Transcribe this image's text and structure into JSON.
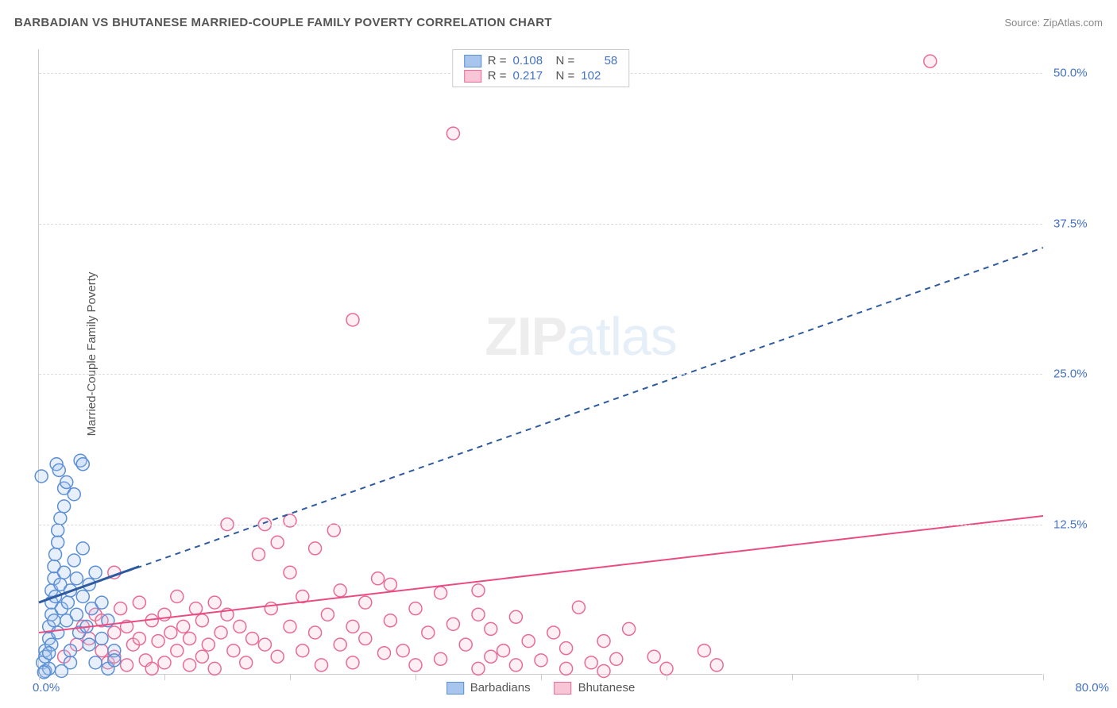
{
  "header": {
    "title": "BARBADIAN VS BHUTANESE MARRIED-COUPLE FAMILY POVERTY CORRELATION CHART",
    "source": "Source: ZipAtlas.com"
  },
  "watermark": {
    "zip": "ZIP",
    "atlas": "atlas"
  },
  "chart": {
    "type": "scatter",
    "y_axis_title": "Married-Couple Family Poverty",
    "background_color": "#ffffff",
    "grid_color": "#dddddd",
    "axis_color": "#cccccc",
    "label_color": "#4472c4",
    "text_color": "#555555",
    "xlim": [
      0,
      80
    ],
    "ylim": [
      0,
      52
    ],
    "x_ticks": [
      0,
      10,
      20,
      30,
      40,
      50,
      60,
      70,
      80
    ],
    "y_gridlines": [
      12.5,
      25.0,
      37.5,
      50.0
    ],
    "y_tick_labels": [
      "12.5%",
      "25.0%",
      "37.5%",
      "50.0%"
    ],
    "x_label_min": "0.0%",
    "x_label_max": "80.0%",
    "marker_radius": 8,
    "marker_stroke_width": 1.5,
    "marker_fill_opacity": 0.28,
    "series": {
      "barbadians": {
        "label": "Barbadians",
        "color_fill": "#a8c6ed",
        "color_stroke": "#5b8fd6",
        "trend_color": "#2d5aa0",
        "trend_dashed": true,
        "trend_line": {
          "x1": 0,
          "y1": 6.0,
          "x2": 80,
          "y2": 35.5
        },
        "trend_solid_segment": {
          "x1": 0,
          "y1": 6.0,
          "x2": 8,
          "y2": 9.0
        },
        "R": "0.108",
        "N": "58",
        "points": [
          [
            0.3,
            1.0
          ],
          [
            0.5,
            2.0
          ],
          [
            0.5,
            0.3
          ],
          [
            0.5,
            1.5
          ],
          [
            0.8,
            3.0
          ],
          [
            0.8,
            4.0
          ],
          [
            0.8,
            0.5
          ],
          [
            1.0,
            5.0
          ],
          [
            1.0,
            6.0
          ],
          [
            1.0,
            7.0
          ],
          [
            1.0,
            2.5
          ],
          [
            1.2,
            8.0
          ],
          [
            1.2,
            9.0
          ],
          [
            1.2,
            4.5
          ],
          [
            1.3,
            10.0
          ],
          [
            1.3,
            6.5
          ],
          [
            1.5,
            11.0
          ],
          [
            1.5,
            12.0
          ],
          [
            1.5,
            3.5
          ],
          [
            1.7,
            13.0
          ],
          [
            1.7,
            7.5
          ],
          [
            1.8,
            5.5
          ],
          [
            2.0,
            14.0
          ],
          [
            2.0,
            8.5
          ],
          [
            2.0,
            15.5
          ],
          [
            2.2,
            16.0
          ],
          [
            2.2,
            4.5
          ],
          [
            2.3,
            6.0
          ],
          [
            2.5,
            7.0
          ],
          [
            2.5,
            2.0
          ],
          [
            2.8,
            15.0
          ],
          [
            2.8,
            9.5
          ],
          [
            3.0,
            5.0
          ],
          [
            3.0,
            8.0
          ],
          [
            3.2,
            3.5
          ],
          [
            3.5,
            6.5
          ],
          [
            3.5,
            10.5
          ],
          [
            3.8,
            4.0
          ],
          [
            4.0,
            7.5
          ],
          [
            4.0,
            2.5
          ],
          [
            4.2,
            5.5
          ],
          [
            4.5,
            8.5
          ],
          [
            4.5,
            1.0
          ],
          [
            5.0,
            6.0
          ],
          [
            5.0,
            3.0
          ],
          [
            5.5,
            4.5
          ],
          [
            5.5,
            0.5
          ],
          [
            6.0,
            2.0
          ],
          [
            6.0,
            1.2
          ],
          [
            1.4,
            17.5
          ],
          [
            1.6,
            17.0
          ],
          [
            3.3,
            17.8
          ],
          [
            3.5,
            17.5
          ],
          [
            0.2,
            16.5
          ],
          [
            2.5,
            1.0
          ],
          [
            1.8,
            0.3
          ],
          [
            0.8,
            1.8
          ],
          [
            0.4,
            0.2
          ]
        ]
      },
      "bhutanese": {
        "label": "Bhutanese",
        "color_fill": "#f7c5d5",
        "color_stroke": "#e96a97",
        "trend_color": "#e94b82",
        "trend_dashed": false,
        "trend_line": {
          "x1": 0,
          "y1": 3.5,
          "x2": 80,
          "y2": 13.2
        },
        "R": "0.217",
        "N": "102",
        "points": [
          [
            2.0,
            1.5
          ],
          [
            3.0,
            2.5
          ],
          [
            3.5,
            4.0
          ],
          [
            4.0,
            3.0
          ],
          [
            4.5,
            5.0
          ],
          [
            5.0,
            2.0
          ],
          [
            5.0,
            4.5
          ],
          [
            5.5,
            1.0
          ],
          [
            6.0,
            3.5
          ],
          [
            6.0,
            1.5
          ],
          [
            6.5,
            5.5
          ],
          [
            7.0,
            4.0
          ],
          [
            7.0,
            0.8
          ],
          [
            7.5,
            2.5
          ],
          [
            8.0,
            6.0
          ],
          [
            8.0,
            3.0
          ],
          [
            8.5,
            1.2
          ],
          [
            9.0,
            4.5
          ],
          [
            9.0,
            0.5
          ],
          [
            9.5,
            2.8
          ],
          [
            10.0,
            5.0
          ],
          [
            10.0,
            1.0
          ],
          [
            10.5,
            3.5
          ],
          [
            11.0,
            6.5
          ],
          [
            11.0,
            2.0
          ],
          [
            11.5,
            4.0
          ],
          [
            12.0,
            0.8
          ],
          [
            12.0,
            3.0
          ],
          [
            12.5,
            5.5
          ],
          [
            13.0,
            1.5
          ],
          [
            13.0,
            4.5
          ],
          [
            13.5,
            2.5
          ],
          [
            14.0,
            6.0
          ],
          [
            14.0,
            0.5
          ],
          [
            14.5,
            3.5
          ],
          [
            15.0,
            5.0
          ],
          [
            15.0,
            12.5
          ],
          [
            15.5,
            2.0
          ],
          [
            16.0,
            4.0
          ],
          [
            16.5,
            1.0
          ],
          [
            17.0,
            3.0
          ],
          [
            17.5,
            10.0
          ],
          [
            18.0,
            2.5
          ],
          [
            18.0,
            12.5
          ],
          [
            18.5,
            5.5
          ],
          [
            19.0,
            1.5
          ],
          [
            19.0,
            11.0
          ],
          [
            20.0,
            4.0
          ],
          [
            20.0,
            8.5
          ],
          [
            20.0,
            12.8
          ],
          [
            21.0,
            2.0
          ],
          [
            21.0,
            6.5
          ],
          [
            22.0,
            3.5
          ],
          [
            22.0,
            10.5
          ],
          [
            22.5,
            0.8
          ],
          [
            23.0,
            5.0
          ],
          [
            23.5,
            12.0
          ],
          [
            24.0,
            2.5
          ],
          [
            24.0,
            7.0
          ],
          [
            25.0,
            4.0
          ],
          [
            25.0,
            1.0
          ],
          [
            26.0,
            6.0
          ],
          [
            26.0,
            3.0
          ],
          [
            27.0,
            8.0
          ],
          [
            27.5,
            1.8
          ],
          [
            28.0,
            4.5
          ],
          [
            28.0,
            7.5
          ],
          [
            29.0,
            2.0
          ],
          [
            30.0,
            5.5
          ],
          [
            30.0,
            0.8
          ],
          [
            31.0,
            3.5
          ],
          [
            32.0,
            6.8
          ],
          [
            32.0,
            1.3
          ],
          [
            33.0,
            4.2
          ],
          [
            34.0,
            2.5
          ],
          [
            35.0,
            5.0
          ],
          [
            35.0,
            0.5
          ],
          [
            35.0,
            7.0
          ],
          [
            36.0,
            1.5
          ],
          [
            36.0,
            3.8
          ],
          [
            37.0,
            2.0
          ],
          [
            38.0,
            4.8
          ],
          [
            38.0,
            0.8
          ],
          [
            39.0,
            2.8
          ],
          [
            40.0,
            1.2
          ],
          [
            41.0,
            3.5
          ],
          [
            42.0,
            0.5
          ],
          [
            42.0,
            2.2
          ],
          [
            43.0,
            5.6
          ],
          [
            44.0,
            1.0
          ],
          [
            45.0,
            0.3
          ],
          [
            45.0,
            2.8
          ],
          [
            46.0,
            1.3
          ],
          [
            47.0,
            3.8
          ],
          [
            49.0,
            1.5
          ],
          [
            50.0,
            0.5
          ],
          [
            53.0,
            2.0
          ],
          [
            54.0,
            0.8
          ],
          [
            25.0,
            29.5
          ],
          [
            33.0,
            45.0
          ],
          [
            71.0,
            51.0
          ],
          [
            6.0,
            8.5
          ]
        ]
      }
    },
    "legend_top": {
      "r_label": "R =",
      "n_label": "N ="
    }
  }
}
